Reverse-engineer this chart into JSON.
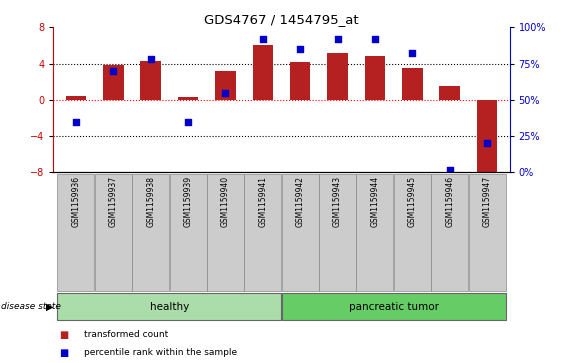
{
  "title": "GDS4767 / 1454795_at",
  "samples": [
    "GSM1159936",
    "GSM1159937",
    "GSM1159938",
    "GSM1159939",
    "GSM1159940",
    "GSM1159941",
    "GSM1159942",
    "GSM1159943",
    "GSM1159944",
    "GSM1159945",
    "GSM1159946",
    "GSM1159947"
  ],
  "bar_values": [
    0.4,
    3.8,
    4.3,
    0.3,
    3.2,
    6.0,
    4.2,
    5.2,
    4.8,
    3.5,
    1.5,
    -8.5
  ],
  "dot_values": [
    35,
    70,
    78,
    35,
    55,
    92,
    85,
    92,
    92,
    82,
    2,
    20
  ],
  "bar_color": "#b52020",
  "dot_color": "#0000cc",
  "groups": [
    {
      "label": "healthy",
      "start": 0,
      "end": 5,
      "color": "#aaddaa"
    },
    {
      "label": "pancreatic tumor",
      "start": 6,
      "end": 11,
      "color": "#66cc66"
    }
  ],
  "ylim_left": [
    -8,
    8
  ],
  "ylim_right": [
    0,
    100
  ],
  "yticks_left": [
    -8,
    -4,
    0,
    4,
    8
  ],
  "yticks_right": [
    0,
    25,
    50,
    75,
    100
  ],
  "disease_state_label": "disease state",
  "legend_bar_label": "transformed count",
  "legend_dot_label": "percentile rank within the sample",
  "right_yaxis_color": "#0000cc",
  "left_yaxis_color": "#cc0000"
}
